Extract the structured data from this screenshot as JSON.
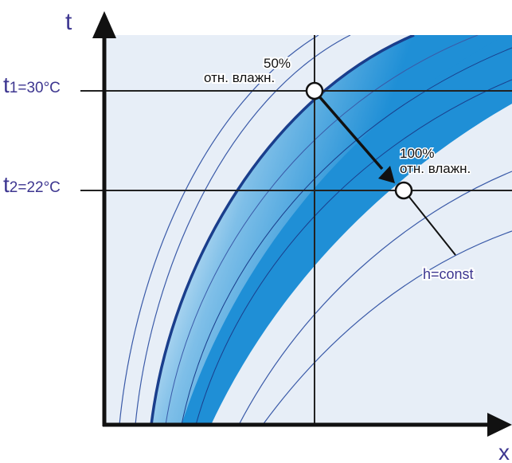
{
  "axes": {
    "y_label": "t",
    "x_label": "x"
  },
  "reference_lines": [
    {
      "label_main": "t",
      "label_sub": "1=30°C"
    },
    {
      "label_main": "t",
      "label_sub": "2=22°C"
    }
  ],
  "points": [
    {
      "percent": "50%",
      "caption": "отн. влажн."
    },
    {
      "percent": "100%",
      "caption": "отн. влажн."
    }
  ],
  "annotation": {
    "text": "h=const"
  },
  "colors": {
    "axis_text": "#3d3690",
    "band_dark": "#1f8fd6",
    "band_light": "#d7e8f6",
    "panel_bg": "#e7eef7",
    "bold_curve": "#1a3e8c",
    "thin_curve": "#3a5aa8",
    "grid": "#222222"
  }
}
